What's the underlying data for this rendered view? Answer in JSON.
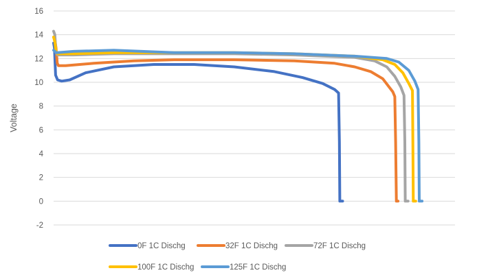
{
  "chart_data": {
    "type": "line",
    "title": "",
    "xlabel": "",
    "ylabel": "Voltage",
    "ylim": [
      -2,
      16
    ],
    "yticks": [
      -2,
      0,
      2,
      4,
      6,
      8,
      10,
      12,
      14,
      16
    ],
    "xlim": [
      0,
      100
    ],
    "grid": true,
    "legend_position": "bottom",
    "series": [
      {
        "name": "0F 1C Dischg",
        "color": "#4472C4",
        "x": [
          0,
          0.2,
          0.5,
          1,
          2,
          4,
          8,
          15,
          25,
          35,
          45,
          55,
          62,
          67,
          70,
          71,
          71.2,
          71.3,
          71.5,
          72
        ],
        "y": [
          13.3,
          12.9,
          10.6,
          10.2,
          10.1,
          10.2,
          10.8,
          11.3,
          11.5,
          11.5,
          11.3,
          10.9,
          10.4,
          9.9,
          9.4,
          9.1,
          5,
          0,
          0,
          0
        ]
      },
      {
        "name": "32F 1C Dischg",
        "color": "#ED7D31",
        "x": [
          0,
          0.3,
          0.6,
          0.9,
          1.2,
          3,
          10,
          20,
          30,
          45,
          60,
          70,
          75,
          79,
          82,
          84.5,
          85,
          85.2,
          85.4,
          85.8
        ],
        "y": [
          13.8,
          13.6,
          12.9,
          11.6,
          11.4,
          11.4,
          11.6,
          11.8,
          11.9,
          11.9,
          11.8,
          11.6,
          11.3,
          10.9,
          10.3,
          9.2,
          8.8,
          5,
          0,
          0
        ]
      },
      {
        "name": "72F 1C Dischg",
        "color": "#A5A5A5",
        "x": [
          0,
          0.3,
          0.6,
          1,
          5,
          15,
          30,
          45,
          60,
          75,
          80,
          83,
          85,
          86.5,
          87.3,
          87.5,
          87.6,
          87.8,
          88.3
        ],
        "y": [
          14.3,
          14.0,
          12.5,
          12.3,
          12.3,
          12.4,
          12.4,
          12.4,
          12.3,
          12.1,
          11.8,
          11.3,
          10.5,
          9.6,
          8.9,
          5,
          0,
          0,
          0
        ]
      },
      {
        "name": "100F 1C Dischg",
        "color": "#FFC000",
        "x": [
          0,
          0.3,
          0.6,
          1,
          5,
          15,
          30,
          45,
          60,
          75,
          82,
          85,
          87,
          88.5,
          89.4,
          89.5,
          89.6,
          89.8,
          90.2
        ],
        "y": [
          13.8,
          13.4,
          12.6,
          12.4,
          12.4,
          12.5,
          12.5,
          12.5,
          12.4,
          12.2,
          11.9,
          11.5,
          10.8,
          9.9,
          9.3,
          5,
          0,
          0,
          0
        ]
      },
      {
        "name": "125F 1C Dischg",
        "color": "#5B9BD5",
        "x": [
          0,
          0.3,
          0.6,
          1,
          5,
          15,
          30,
          45,
          60,
          75,
          83,
          86,
          88.5,
          90,
          90.8,
          91,
          91.1,
          91.3,
          91.8
        ],
        "y": [
          12.7,
          12.6,
          12.5,
          12.5,
          12.6,
          12.7,
          12.5,
          12.5,
          12.4,
          12.2,
          12.0,
          11.7,
          11.0,
          10.1,
          9.4,
          5,
          0,
          0,
          0
        ]
      }
    ]
  }
}
